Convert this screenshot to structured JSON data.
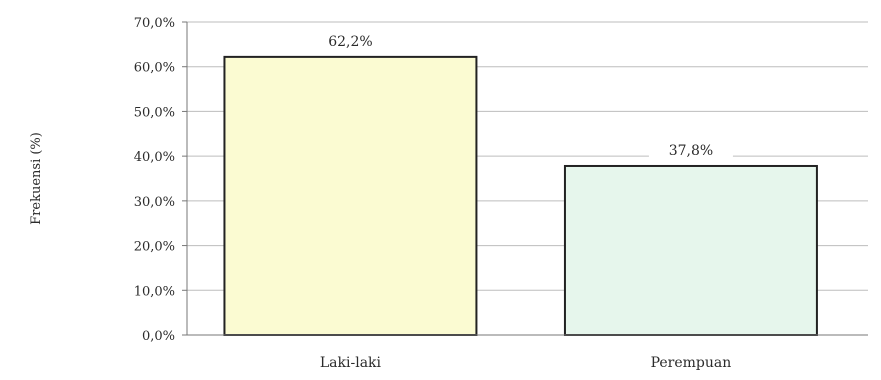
{
  "chart_data": {
    "type": "bar",
    "title": "",
    "xlabel": "",
    "ylabel": "Frekuensi (%)",
    "categories": [
      "Laki-laki",
      "Perempuan"
    ],
    "values": [
      62.2,
      37.8
    ],
    "data_labels": [
      "62,2%",
      "37,8%"
    ],
    "yticks": [
      0,
      10,
      20,
      30,
      40,
      50,
      60,
      70
    ],
    "ytick_labels": [
      "0,0%",
      "10,0%",
      "20,0%",
      "30,0%",
      "40,0%",
      "50,0%",
      "60,0%",
      "70,0%"
    ],
    "ylim": [
      0,
      70
    ],
    "grid": true,
    "legend": "none",
    "colors": {
      "bars": [
        "#fbfbd2",
        "#e6f6ec"
      ],
      "bar_stroke": "#222222",
      "grid": "#bdbdbd",
      "axis": "#777777"
    }
  }
}
